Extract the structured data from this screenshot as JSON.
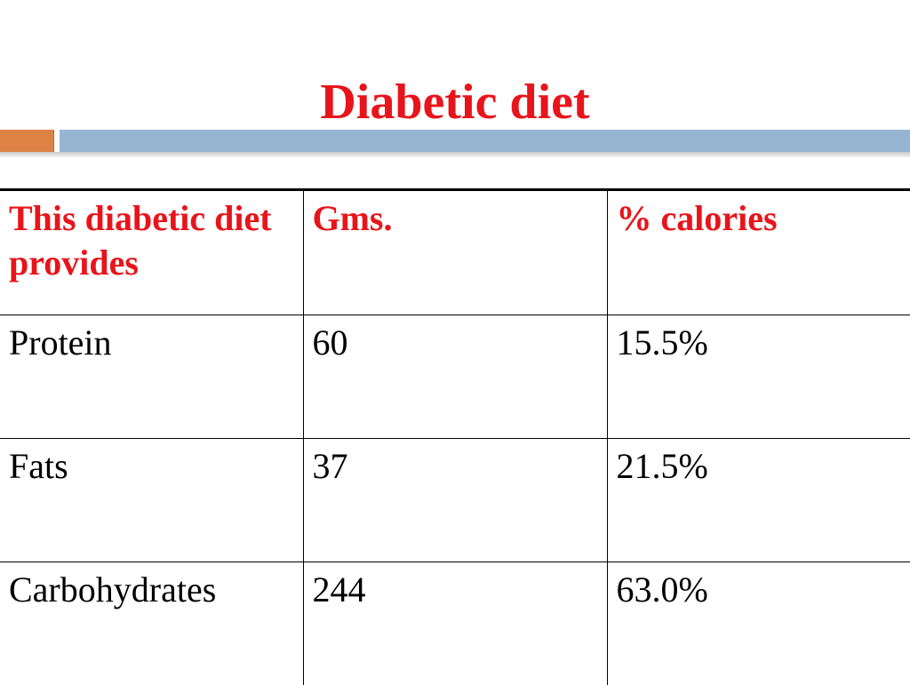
{
  "slide": {
    "title": "Diabetic diet",
    "accent_colors": {
      "title": "#e8141b",
      "rule_orange": "#de8243",
      "rule_blue": "#97b5d3"
    }
  },
  "table": {
    "headers": [
      "This diabetic diet provides",
      "Gms.",
      "% calories"
    ],
    "rows": [
      [
        "Protein",
        "60",
        "15.5%"
      ],
      [
        "Fats",
        "37",
        "21.5%"
      ],
      [
        "Carbohydrates",
        "244",
        "63.0%"
      ]
    ]
  }
}
